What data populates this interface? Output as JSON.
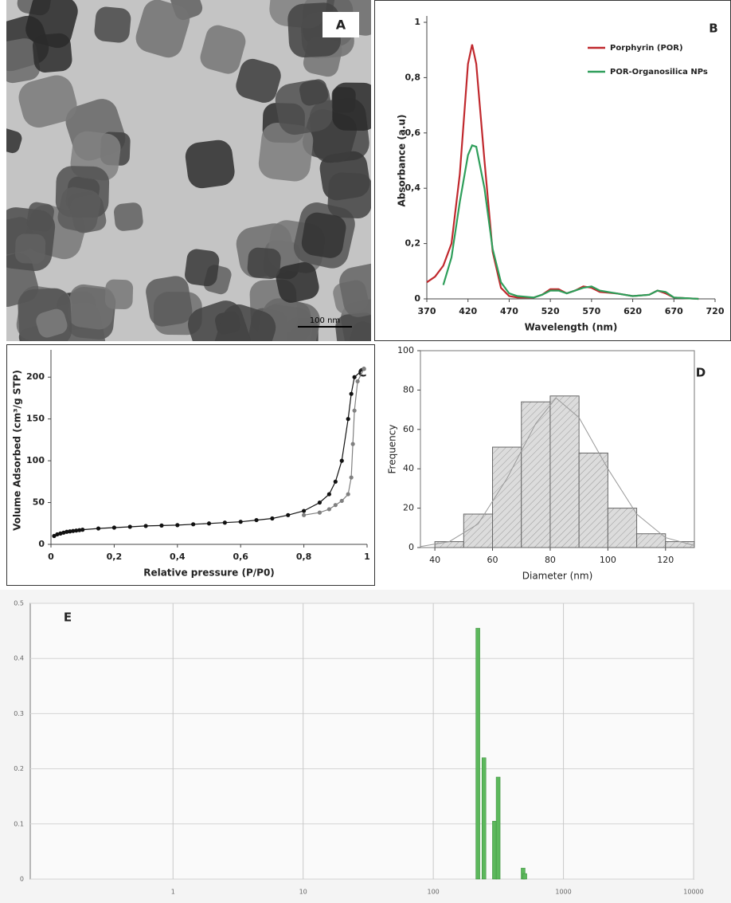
{
  "image_panel": {
    "label": "A",
    "scale_bar": "100 nm"
  },
  "chart_data": [
    {
      "type": "line",
      "label": "B",
      "xlabel": "Wavelength (nm)",
      "ylabel": "Absorbance (a.u)",
      "x": [
        370,
        380,
        390,
        400,
        410,
        420,
        425,
        430,
        440,
        450,
        460,
        470,
        480,
        500,
        510,
        520,
        530,
        540,
        550,
        560,
        570,
        580,
        600,
        620,
        640,
        650,
        660,
        670,
        700
      ],
      "series": [
        {
          "name": "Porphyrin (POR)",
          "color": "#c0282d",
          "values": [
            0.06,
            0.08,
            0.12,
            0.2,
            0.45,
            0.85,
            0.92,
            0.85,
            0.5,
            0.17,
            0.04,
            0.01,
            0.005,
            0.005,
            0.015,
            0.035,
            0.035,
            0.02,
            0.03,
            0.045,
            0.04,
            0.025,
            0.02,
            0.01,
            0.015,
            0.03,
            0.02,
            0.005,
            0
          ]
        },
        {
          "name": "POR-Organosilica NPs",
          "color": "#2e9e5a",
          "values": [
            null,
            null,
            0.05,
            0.15,
            0.35,
            0.52,
            0.555,
            0.55,
            0.4,
            0.18,
            0.06,
            0.02,
            0.01,
            0.005,
            0.015,
            0.03,
            0.03,
            0.02,
            0.03,
            0.04,
            0.045,
            0.03,
            0.02,
            0.01,
            0.015,
            0.03,
            0.025,
            0.005,
            0
          ]
        }
      ],
      "xlim": [
        370,
        720
      ],
      "xticks": [
        370,
        420,
        470,
        520,
        570,
        620,
        670,
        720
      ],
      "ylim": [
        0,
        1
      ],
      "yticks": [
        0,
        {
          "value": 0.2,
          "label": "0,2"
        },
        {
          "value": 0.4,
          "label": "0,4"
        },
        {
          "value": 0.6,
          "label": "0,6"
        },
        {
          "value": 0.8,
          "label": "0,8"
        },
        1
      ],
      "legend": "top-right"
    },
    {
      "type": "line",
      "label": "C",
      "xlabel": "Relative pressure (P/P0)",
      "ylabel": "Volume  Adsorbed (cm³/g STP)",
      "markers": true,
      "series": [
        {
          "color": "#111111",
          "x": [
            0.01,
            0.02,
            0.03,
            0.04,
            0.05,
            0.06,
            0.07,
            0.08,
            0.09,
            0.1,
            0.15,
            0.2,
            0.25,
            0.3,
            0.35,
            0.4,
            0.45,
            0.5,
            0.55,
            0.6,
            0.65,
            0.7,
            0.75,
            0.8,
            0.85,
            0.88,
            0.9,
            0.92,
            0.94,
            0.95,
            0.96,
            0.99
          ],
          "values": [
            10,
            12,
            13,
            14,
            15,
            15.5,
            16,
            16.5,
            17,
            17.5,
            19,
            20,
            21,
            22,
            22.5,
            23,
            24,
            25,
            26,
            27,
            29,
            31,
            35,
            40,
            50,
            60,
            75,
            100,
            150,
            180,
            200,
            210
          ]
        },
        {
          "color": "#808080",
          "x": [
            0.99,
            0.97,
            0.96,
            0.955,
            0.95,
            0.94,
            0.92,
            0.9,
            0.88,
            0.85,
            0.8
          ],
          "values": [
            210,
            195,
            160,
            120,
            80,
            60,
            52,
            47,
            42,
            38,
            35
          ]
        }
      ],
      "xlim": [
        0,
        1
      ],
      "xticks": [
        0,
        {
          "value": 0.2,
          "label": "0,2"
        },
        {
          "value": 0.4,
          "label": "0,4"
        },
        {
          "value": 0.6,
          "label": "0,6"
        },
        {
          "value": 0.8,
          "label": "0,8"
        },
        1
      ],
      "ylim": [
        0,
        225
      ],
      "yticks": [
        0,
        50,
        100,
        150,
        200
      ]
    },
    {
      "type": "histogram",
      "label": "D",
      "xlabel": "Diameter (nm)",
      "ylabel": "Frequency",
      "color": "#d8d8d8",
      "bins": [
        40,
        50,
        60,
        70,
        80,
        90,
        100,
        110,
        120,
        130
      ],
      "counts": [
        3,
        17,
        51,
        74,
        77,
        48,
        20,
        7,
        3
      ],
      "fit": {
        "color": "#9a9a9a",
        "x": [
          35,
          45,
          55,
          65,
          75,
          82,
          90,
          100,
          110,
          120,
          130
        ],
        "values": [
          0.5,
          3,
          12,
          35,
          63,
          76,
          66,
          40,
          17,
          5,
          1
        ]
      },
      "xlim": [
        35,
        130
      ],
      "xticks": [
        40,
        60,
        80,
        100,
        120
      ],
      "ylim": [
        0,
        100
      ],
      "yticks": [
        0,
        20,
        40,
        60,
        80,
        100
      ]
    },
    {
      "type": "bar",
      "label": "E",
      "log_x": true,
      "grid": true,
      "color": "#5cb85c",
      "x": [
        220,
        245,
        295,
        315,
        490,
        505
      ],
      "values": [
        0.455,
        0.22,
        0.105,
        0.185,
        0.02,
        0.01
      ],
      "xlim": [
        0.08,
        10000
      ],
      "xticks": [
        1,
        10,
        100,
        1000,
        10000
      ],
      "ylim": [
        0,
        0.5
      ],
      "yticks": [
        0,
        0.1,
        0.2,
        0.3,
        0.4,
        0.5
      ]
    }
  ]
}
